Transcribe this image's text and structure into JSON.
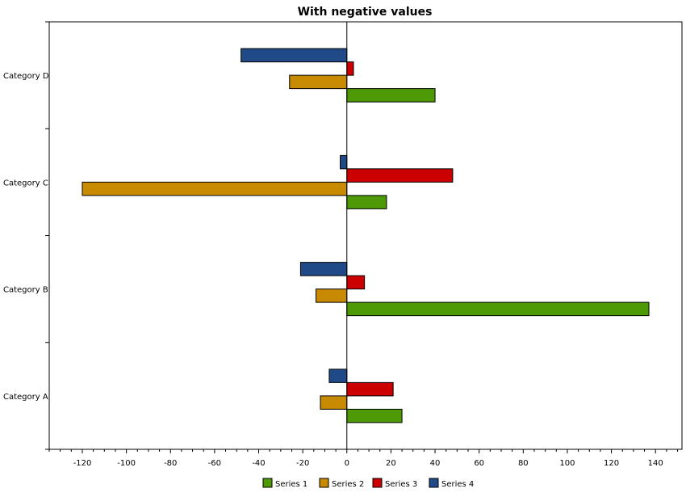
{
  "chart_data": {
    "type": "bar",
    "orientation": "horizontal",
    "title": "With negative values",
    "categories": [
      "Category A",
      "Category B",
      "Category C",
      "Category D"
    ],
    "series": [
      {
        "name": "Series 1",
        "color": "#4e9a06",
        "values": [
          25,
          137,
          18,
          40
        ]
      },
      {
        "name": "Series 2",
        "color": "#c88a00",
        "values": [
          -12,
          -14,
          -120,
          -26
        ]
      },
      {
        "name": "Series 3",
        "color": "#cc0000",
        "values": [
          21,
          8,
          48,
          3
        ]
      },
      {
        "name": "Series 4",
        "color": "#204a87",
        "values": [
          -8,
          -21,
          -3,
          -48
        ]
      }
    ],
    "xlim": [
      -135,
      152
    ],
    "x_ticks": [
      -120,
      -100,
      -80,
      -60,
      -40,
      -20,
      0,
      20,
      40,
      60,
      80,
      100,
      120,
      140
    ],
    "x_tick_labels": [
      "-120",
      "-100",
      "-80",
      "-60",
      "-40",
      "-20",
      "0",
      "20",
      "40",
      "60",
      "80",
      "100",
      "120",
      "140"
    ],
    "minor_tick_step": 5,
    "xlabel": "",
    "ylabel": "",
    "grid": false,
    "legend_position": "bottom"
  }
}
